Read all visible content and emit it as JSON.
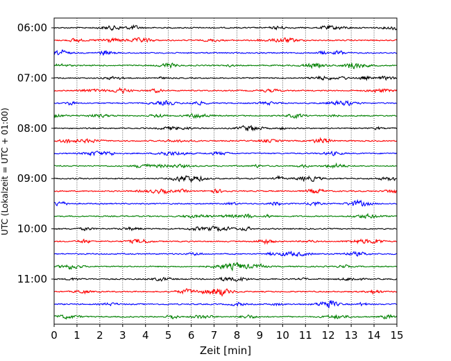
{
  "chart_data": {
    "type": "line",
    "title": "",
    "xlabel": "Zeit  [min]",
    "ylabel": "UTC (Lokalzeit = UTC + 01:00)",
    "xlim": [
      0,
      15
    ],
    "xticks": [
      "0",
      "1",
      "2",
      "3",
      "4",
      "5",
      "6",
      "7",
      "8",
      "9",
      "10",
      "11",
      "12",
      "13",
      "14",
      "15"
    ],
    "yticks": [
      {
        "label": "06:00",
        "trace": 0
      },
      {
        "label": "07:00",
        "trace": 4
      },
      {
        "label": "08:00",
        "trace": 8
      },
      {
        "label": "09:00",
        "trace": 12
      },
      {
        "label": "10:00",
        "trace": 16
      },
      {
        "label": "11:00",
        "trace": 20
      }
    ],
    "grid": "vertical dotted",
    "trace_interval_minutes": 15,
    "trace_start": "06:00",
    "trace_count": 24,
    "trace_colors": [
      "#000000",
      "#ff0000",
      "#0000ff",
      "#008000"
    ]
  }
}
